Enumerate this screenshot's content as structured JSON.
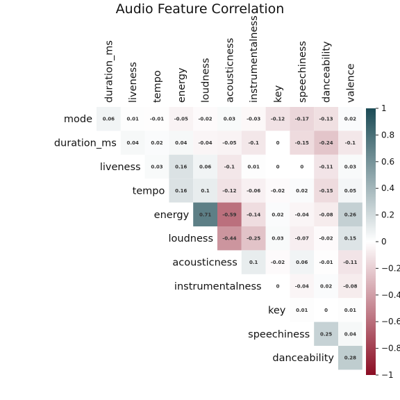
{
  "chart_data": {
    "type": "heatmap",
    "title": "Audio Feature Correlation",
    "row_labels": [
      "mode",
      "duration_ms",
      "liveness",
      "tempo",
      "energy",
      "loudness",
      "acousticness",
      "instrumentalness",
      "key",
      "speechiness",
      "danceability"
    ],
    "col_labels": [
      "duration_ms",
      "liveness",
      "tempo",
      "energy",
      "loudness",
      "acousticness",
      "instrumentalness",
      "key",
      "speechiness",
      "danceability",
      "valence"
    ],
    "matrix_shape": "upper-triangular",
    "values": [
      [
        0.06,
        0.01,
        -0.01,
        -0.05,
        -0.02,
        0.03,
        -0.03,
        -0.12,
        -0.17,
        -0.13,
        0.02
      ],
      [
        null,
        0.04,
        0.02,
        0.04,
        -0.04,
        -0.05,
        -0.1,
        0,
        -0.15,
        -0.24,
        -0.1
      ],
      [
        null,
        null,
        0.03,
        0.16,
        0.06,
        -0.1,
        0.01,
        0,
        0,
        -0.11,
        0.03
      ],
      [
        null,
        null,
        null,
        0.16,
        0.1,
        -0.12,
        -0.06,
        -0.02,
        0.02,
        -0.15,
        0.05
      ],
      [
        null,
        null,
        null,
        null,
        0.71,
        -0.59,
        -0.14,
        0.02,
        -0.04,
        -0.08,
        0.26
      ],
      [
        null,
        null,
        null,
        null,
        null,
        -0.44,
        -0.25,
        0.03,
        -0.07,
        -0.02,
        0.15
      ],
      [
        null,
        null,
        null,
        null,
        null,
        null,
        0.1,
        -0.02,
        0.06,
        -0.01,
        -0.11
      ],
      [
        null,
        null,
        null,
        null,
        null,
        null,
        null,
        0,
        -0.04,
        0.02,
        -0.08
      ],
      [
        null,
        null,
        null,
        null,
        null,
        null,
        null,
        null,
        0.01,
        0,
        0.01
      ],
      [
        null,
        null,
        null,
        null,
        null,
        null,
        null,
        null,
        null,
        0.25,
        0.04
      ],
      [
        null,
        null,
        null,
        null,
        null,
        null,
        null,
        null,
        null,
        null,
        0.28
      ]
    ],
    "colorbar": {
      "range": [
        -1,
        1
      ],
      "ticks": [
        1,
        0.8,
        0.6,
        0.4,
        0.2,
        0,
        -0.2,
        -0.4,
        -0.6,
        -0.8,
        -1
      ],
      "colors": {
        "low": "#8b0d23",
        "mid": "#ffffff",
        "high": "#1b4b55"
      },
      "placement": "right"
    }
  }
}
